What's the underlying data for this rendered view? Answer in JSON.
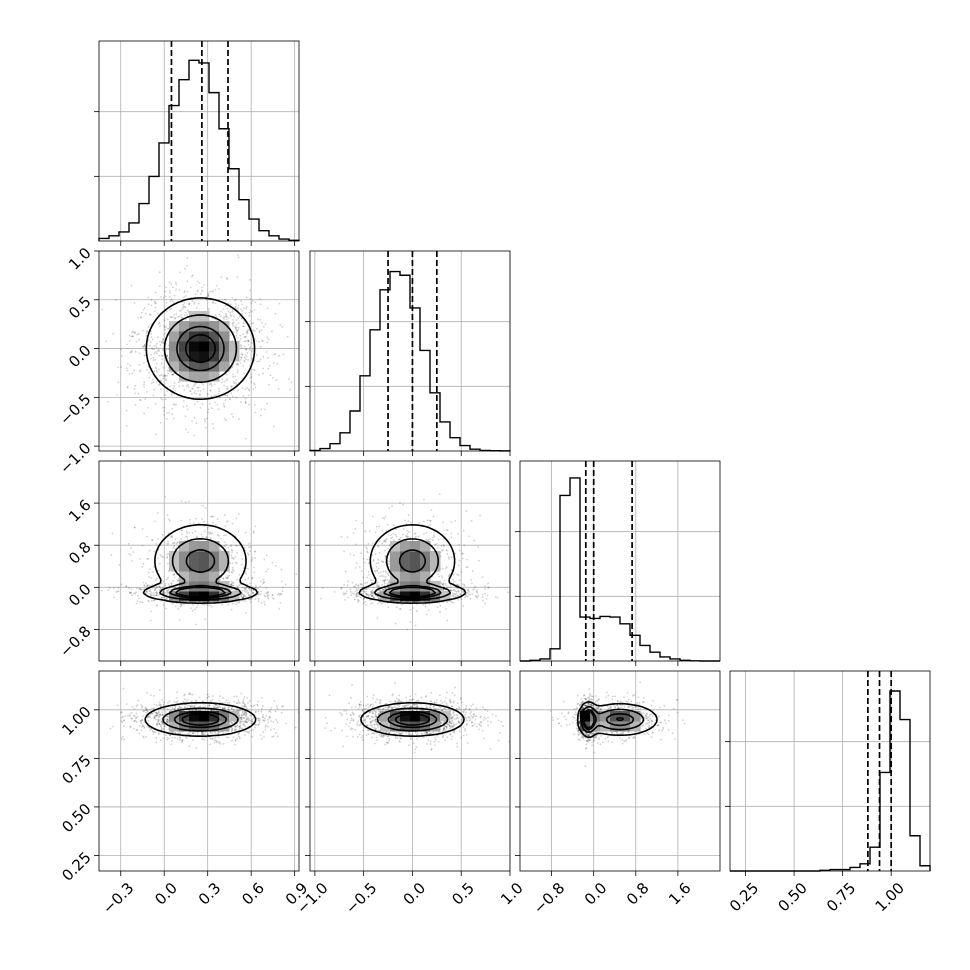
{
  "chart_data": {
    "type": "corner",
    "parameters": [
      {
        "index": 0,
        "range": [
          -0.45,
          0.93
        ],
        "ticks": [
          -0.3,
          0.0,
          0.3,
          0.6,
          0.9
        ],
        "tick_labels": [
          "−0.3",
          "0.0",
          "0.3",
          "0.6",
          "0.9"
        ],
        "quantiles": [
          0.05,
          0.26,
          0.44
        ],
        "mean": 0.25,
        "sd": 0.18,
        "hist_bins": [
          -0.45,
          0.93,
          20
        ],
        "hist_counts": [
          20,
          40,
          70,
          140,
          290,
          500,
          760,
          1050,
          1250,
          1400,
          1380,
          1150,
          870,
          560,
          320,
          170,
          80,
          40,
          15,
          5
        ],
        "hist_ylim": [
          0,
          1550
        ]
      },
      {
        "index": 1,
        "range": [
          -1.05,
          1.0
        ],
        "ticks": [
          -1.0,
          -0.5,
          0.0,
          0.5,
          1.0
        ],
        "tick_labels": [
          "−1.0",
          "−0.5",
          "0.0",
          "0.5",
          "1.0"
        ],
        "quantiles": [
          -0.25,
          0.0,
          0.25
        ],
        "mean": 0.0,
        "sd": 0.25,
        "hist_bins": [
          -1.05,
          1.0,
          20
        ],
        "hist_counts": [
          5,
          20,
          60,
          150,
          330,
          620,
          1000,
          1330,
          1480,
          1450,
          1180,
          830,
          480,
          240,
          110,
          45,
          15,
          5,
          2,
          1
        ],
        "hist_ylim": [
          0,
          1650
        ]
      },
      {
        "index": 2,
        "range": [
          -1.4,
          2.4
        ],
        "ticks": [
          -0.8,
          0.0,
          0.8,
          1.6
        ],
        "tick_labels": [
          "−0.8",
          "0.0",
          "0.8",
          "1.6"
        ],
        "quantiles": [
          -0.15,
          0.0,
          0.73
        ],
        "hist_bins": [
          -1.4,
          2.4,
          20
        ],
        "hist_counts": [
          0,
          10,
          30,
          180,
          2450,
          2710,
          650,
          630,
          660,
          650,
          550,
          380,
          230,
          130,
          60,
          30,
          10,
          3,
          0,
          0
        ],
        "hist_ylim": [
          0,
          2960
        ]
      },
      {
        "index": 3,
        "range": [
          0.17,
          1.2
        ],
        "ticks": [
          0.25,
          0.5,
          0.75,
          1.0
        ],
        "tick_labels": [
          "0.25",
          "0.50",
          "0.75",
          "1.00"
        ],
        "quantiles": [
          0.88,
          0.94,
          1.0
        ],
        "mean": 0.94,
        "sd": 0.06,
        "hist_bins": [
          0.17,
          1.2,
          20
        ],
        "hist_counts": [
          0,
          0,
          0,
          0,
          0,
          0,
          0,
          0,
          0,
          15,
          30,
          30,
          75,
          150,
          500,
          2070,
          3780,
          3180,
          740,
          110
        ],
        "hist_ylim": [
          0,
          4200
        ]
      }
    ],
    "pairs": [
      {
        "x": 0,
        "y": 1,
        "rho": 0.0,
        "core": {
          "mx": 0.25,
          "my": 0.0,
          "sx": 0.18,
          "sy": 0.25,
          "w": 1
        }
      },
      {
        "x": 0,
        "y": 2,
        "rho": 0.0,
        "core": {
          "mx": 0.25,
          "my": -0.1,
          "sx": 0.18,
          "sy": 0.08,
          "w": 0.6
        },
        "tail": {
          "mx": 0.25,
          "my": 0.5,
          "sx": 0.16,
          "sy": 0.35,
          "w": 0.4
        }
      },
      {
        "x": 1,
        "y": 2,
        "rho": 0.0,
        "core": {
          "mx": 0.0,
          "my": -0.1,
          "sx": 0.25,
          "sy": 0.08,
          "w": 0.6
        },
        "tail": {
          "mx": 0.0,
          "my": 0.5,
          "sx": 0.22,
          "sy": 0.35,
          "w": 0.4
        }
      },
      {
        "x": 0,
        "y": 3,
        "rho": 0.0,
        "core": {
          "mx": 0.25,
          "my": 0.95,
          "sx": 0.18,
          "sy": 0.04,
          "w": 1
        }
      },
      {
        "x": 1,
        "y": 3,
        "rho": 0.0,
        "core": {
          "mx": 0.0,
          "my": 0.95,
          "sx": 0.25,
          "sy": 0.04,
          "w": 1
        }
      },
      {
        "x": 2,
        "y": 3,
        "rho": 0.0,
        "core": {
          "mx": -0.1,
          "my": 0.95,
          "sx": 0.08,
          "sy": 0.04,
          "w": 0.6
        },
        "tail": {
          "mx": 0.5,
          "my": 0.95,
          "sx": 0.35,
          "sy": 0.04,
          "w": 0.4
        }
      }
    ],
    "contour_levels": [
      0.118,
      0.393,
      0.675,
      0.864
    ],
    "colors": {
      "ink": "#000000",
      "grid": "#b0b0b0",
      "points": "#000000"
    },
    "grid": true
  }
}
